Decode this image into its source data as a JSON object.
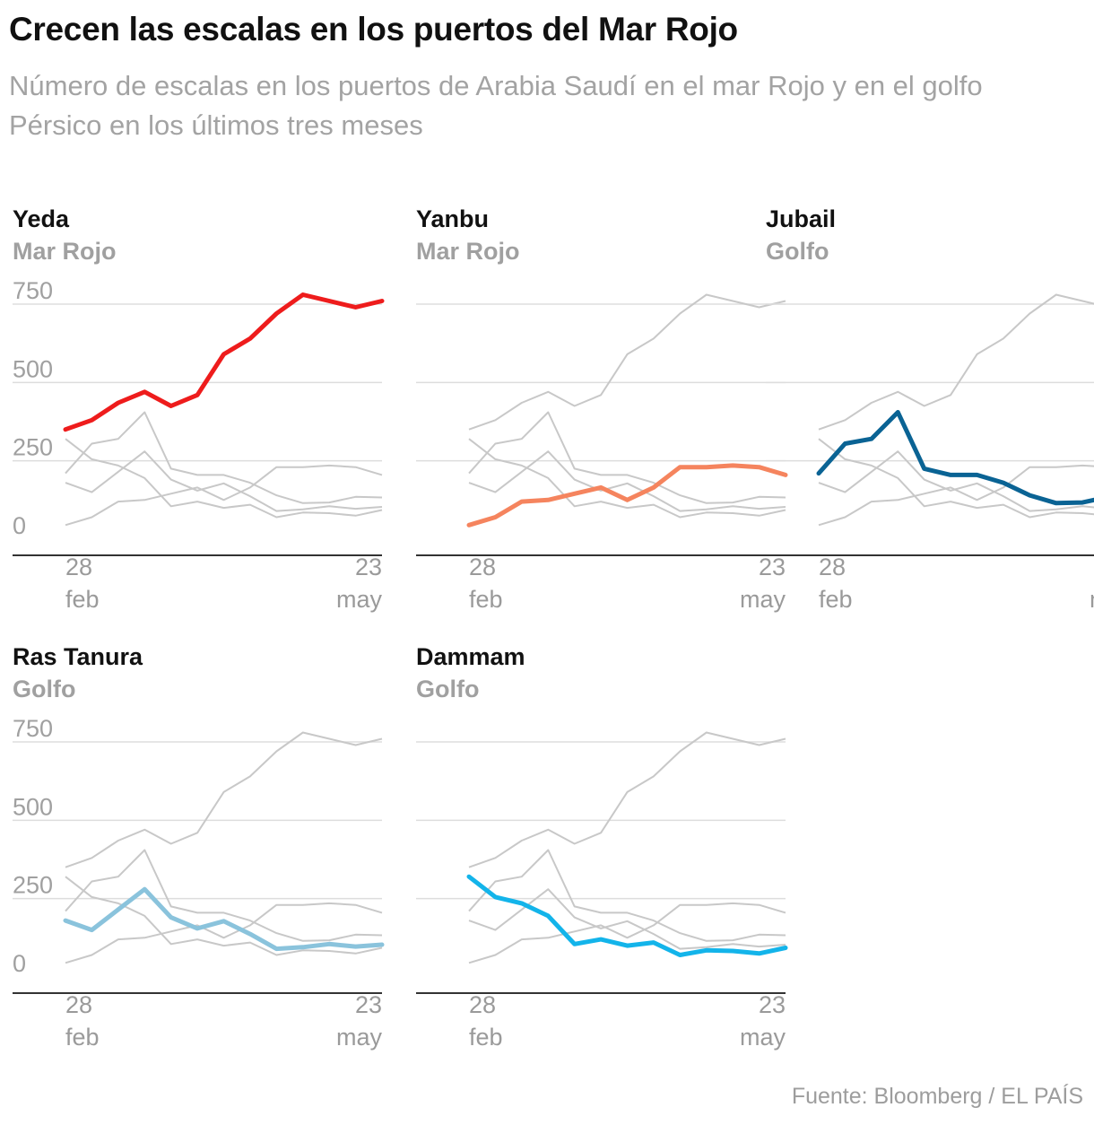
{
  "title": "Crecen las escalas en los puertos del Mar Rojo",
  "subtitle": "Número de escalas en los puertos de Arabia Saudí en el mar Rojo y en el golfo Pérsico en los últimos tres meses",
  "source": "Fuente: Bloomberg / EL PAÍS",
  "chart_data": {
    "type": "line",
    "layout": "small-multiples",
    "y_ticks": [
      0,
      250,
      500,
      750
    ],
    "ylim": [
      0,
      750
    ],
    "x_tick_labels": [
      {
        "day": "28",
        "month": "feb"
      },
      {
        "day": "23",
        "month": "may"
      }
    ],
    "grid": true,
    "series": [
      {
        "name": "Yeda",
        "region": "Mar Rojo",
        "color": "#ee1c1c",
        "values": [
          350,
          380,
          435,
          470,
          425,
          460,
          590,
          640,
          720,
          780,
          760,
          740,
          760
        ]
      },
      {
        "name": "Yanbu",
        "region": "Mar Rojo",
        "color": "#f5845e",
        "values": [
          45,
          70,
          120,
          125,
          145,
          165,
          125,
          165,
          230,
          230,
          235,
          230,
          205
        ]
      },
      {
        "name": "Jubail",
        "region": "Golfo",
        "color": "#0a6394",
        "values": [
          210,
          305,
          320,
          405,
          225,
          205,
          205,
          180,
          140,
          115,
          117,
          135,
          133
        ]
      },
      {
        "name": "Ras Tanura",
        "region": "Golfo",
        "color": "#8ac3dc",
        "values": [
          180,
          150,
          215,
          280,
          190,
          155,
          178,
          137,
          90,
          95,
          105,
          97,
          103
        ]
      },
      {
        "name": "Dammam",
        "region": "Golfo",
        "color": "#13b4ea",
        "values": [
          320,
          255,
          235,
          195,
          105,
          120,
          100,
          110,
          70,
          85,
          83,
          75,
          93
        ]
      }
    ]
  }
}
